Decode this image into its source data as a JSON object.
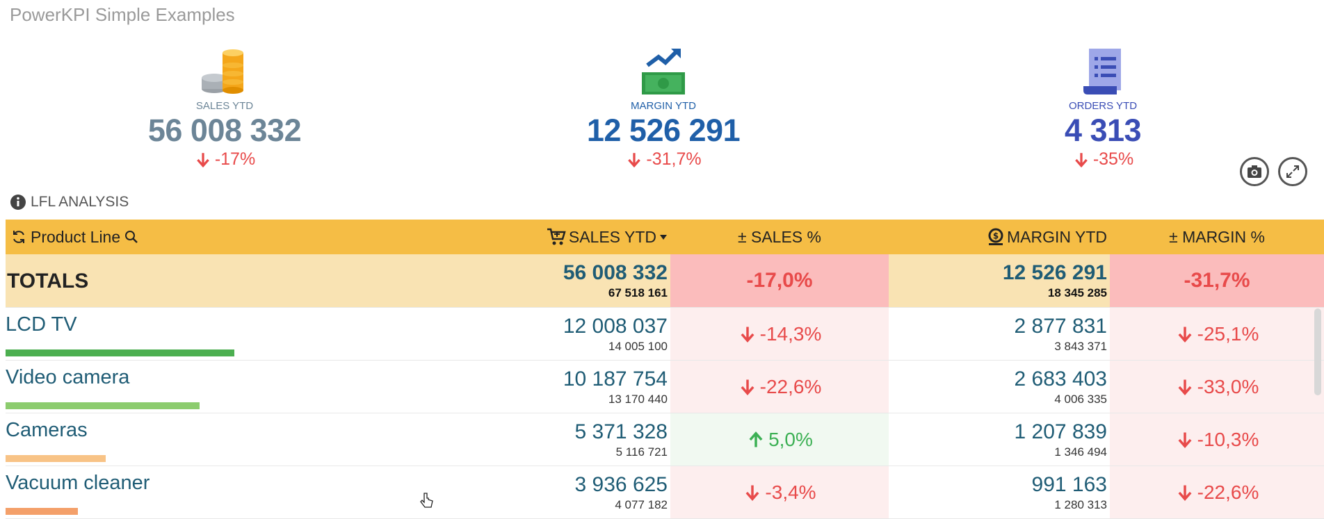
{
  "app": {
    "title": "PowerKPI Simple Examples"
  },
  "kpis": [
    {
      "label": "SALES YTD",
      "value": "56 008 332",
      "delta": "-17%",
      "color": "#6c8597",
      "icon": "coins-icon"
    },
    {
      "label": "MARGIN YTD",
      "value": "12 526 291",
      "delta": "-31,7%",
      "color": "#1f5fa8",
      "icon": "money-chart-icon"
    },
    {
      "label": "ORDERS YTD",
      "value": "4 313",
      "delta": "-35%",
      "color": "#3a4db5",
      "icon": "receipt-icon"
    }
  ],
  "section": {
    "title": "LFL ANALYSIS",
    "icon": "info-icon"
  },
  "table": {
    "headers": {
      "product": "Product Line",
      "sales": "SALES YTD",
      "dsales": "± SALES %",
      "margin": "MARGIN YTD",
      "dmargin": "± MARGIN %"
    },
    "totals": {
      "label": "TOTALS",
      "sales": "56 008 332",
      "sales_prev": "67 518 161",
      "dsales": "-17,0%",
      "margin": "12 526 291",
      "margin_prev": "18 345 285",
      "dmargin": "-31,7%"
    },
    "rows": [
      {
        "name": "LCD TV",
        "sales": "12 008 037",
        "sales_prev": "14 005 100",
        "dsales": "-14,3%",
        "margin": "2 877 831",
        "margin_prev": "3 843 371",
        "dmargin": "-25,1%",
        "bar_share": 0.98,
        "bar_color": "#4caf50"
      },
      {
        "name": "Video camera",
        "sales": "10 187 754",
        "sales_prev": "13 170 440",
        "dsales": "-22,6%",
        "margin": "2 683 403",
        "margin_prev": "4 006 335",
        "dmargin": "-33,0%",
        "bar_share": 0.83,
        "bar_color": "#8ccc6e"
      },
      {
        "name": "Cameras",
        "sales": "5 371 328",
        "sales_prev": "5 116 721",
        "dsales": "5,0%",
        "margin": "1 207 839",
        "margin_prev": "1 346 494",
        "dmargin": "-10,3%",
        "bar_share": 0.43,
        "bar_color": "#f8c386"
      },
      {
        "name": "Vacuum cleaner",
        "sales": "3 936 625",
        "sales_prev": "4 077 182",
        "dsales": "-3,4%",
        "margin": "991 163",
        "margin_prev": "1 280 313",
        "dmargin": "-22,6%",
        "bar_share": 0.31,
        "bar_color": "#f4a06a"
      }
    ]
  }
}
